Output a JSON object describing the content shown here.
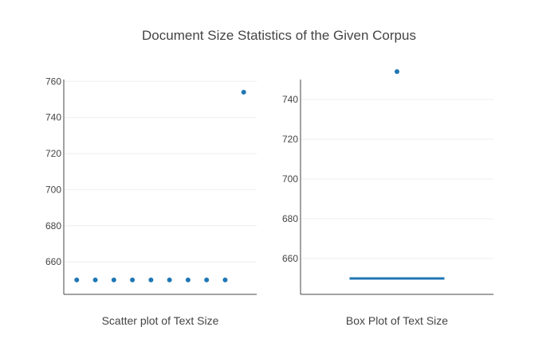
{
  "title": "Document Size Statistics of the Given Corpus",
  "chart_data": [
    {
      "type": "scatter",
      "xlabel": "Scatter plot of Text Size",
      "ylabel": "",
      "ylim": [
        642,
        761
      ],
      "yticks": [
        660,
        680,
        700,
        720,
        740,
        760
      ],
      "grid": true,
      "x": [
        1,
        2,
        3,
        4,
        5,
        6,
        7,
        8,
        9,
        10
      ],
      "y": [
        650,
        650,
        650,
        650,
        650,
        650,
        650,
        650,
        650,
        754
      ],
      "color": "#1f77b4"
    },
    {
      "type": "box",
      "xlabel": "Box Plot of Text Size",
      "ylabel": "",
      "ylim": [
        642,
        750
      ],
      "yticks": [
        660,
        680,
        700,
        720,
        740
      ],
      "grid": true,
      "box": {
        "min": 650,
        "q1": 650,
        "median": 650,
        "q3": 650,
        "max": 650
      },
      "outliers": [
        754
      ],
      "color": "#1f77b4"
    }
  ]
}
